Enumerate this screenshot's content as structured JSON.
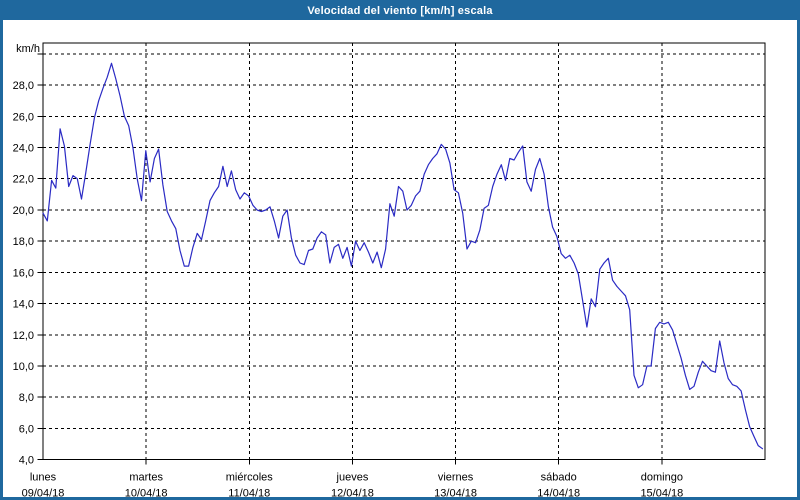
{
  "window": {
    "title": "Velocidad del viento [km/h] escala"
  },
  "colors": {
    "frame_blue": "#1f689e",
    "title_text": "#ffffff",
    "line_blue": "#2b2bc4",
    "grid_black": "#000000",
    "plot_background": "#ffffff"
  },
  "chart_data": {
    "type": "line",
    "title": "Velocidad del viento [km/h] escala",
    "ylabel": "km/h",
    "y_unit_label": "km/h",
    "ylim": [
      4,
      30.7
    ],
    "y_grid_step": 2,
    "y_grid_values": [
      30,
      28,
      26,
      24,
      22,
      20,
      18,
      16,
      14,
      12,
      10,
      8,
      6,
      4
    ],
    "y_tick_labels": [
      {
        "value": 28,
        "label": "28,0"
      },
      {
        "value": 26,
        "label": "26,0"
      },
      {
        "value": 24,
        "label": "24,0"
      },
      {
        "value": 22,
        "label": "22,0"
      },
      {
        "value": 20,
        "label": "20,0"
      },
      {
        "value": 18,
        "label": "18,0"
      },
      {
        "value": 16,
        "label": "16,0"
      },
      {
        "value": 14,
        "label": "14,0"
      },
      {
        "value": 12,
        "label": "12,0"
      },
      {
        "value": 10,
        "label": "10,0"
      },
      {
        "value": 8,
        "label": "8,0"
      },
      {
        "value": 6,
        "label": "6,0"
      },
      {
        "value": 4,
        "label": "4,0"
      }
    ],
    "x_days": [
      {
        "name": "lunes",
        "date": "09/04/18"
      },
      {
        "name": "martes",
        "date": "10/04/18"
      },
      {
        "name": "miércoles",
        "date": "11/04/18"
      },
      {
        "name": "jueves",
        "date": "12/04/18"
      },
      {
        "name": "viernes",
        "date": "13/04/18"
      },
      {
        "name": "sábado",
        "date": "14/04/18"
      },
      {
        "name": "domingo",
        "date": "15/04/18"
      }
    ],
    "legend_position": "none",
    "grid": true,
    "series": [
      {
        "name": "Velocidad del viento",
        "color": "#2b2bc4",
        "values": [
          19.8,
          19.3,
          21.9,
          21.4,
          25.2,
          24.1,
          21.5,
          22.2,
          22.0,
          20.7,
          22.4,
          24.2,
          25.9,
          27.0,
          27.8,
          28.5,
          29.4,
          28.4,
          27.3,
          26.0,
          25.4,
          24.0,
          22.0,
          20.6,
          23.8,
          21.8,
          23.3,
          23.9,
          21.6,
          19.9,
          19.3,
          18.8,
          17.4,
          16.4,
          16.4,
          17.6,
          18.5,
          18.1,
          19.3,
          20.6,
          21.1,
          21.5,
          22.8,
          21.5,
          22.5,
          21.3,
          20.7,
          21.1,
          20.9,
          20.3,
          20.0,
          19.9,
          20.0,
          20.2,
          19.3,
          18.2,
          19.6,
          20.0,
          18.2,
          17.1,
          16.6,
          16.5,
          17.4,
          17.5,
          18.2,
          18.6,
          18.4,
          16.6,
          17.6,
          17.8,
          16.9,
          17.6,
          16.4,
          18.0,
          17.4,
          17.9,
          17.3,
          16.6,
          17.3,
          16.3,
          17.5,
          20.4,
          19.6,
          21.5,
          21.2,
          20.0,
          20.3,
          20.9,
          21.2,
          22.3,
          22.9,
          23.3,
          23.6,
          24.2,
          23.9,
          23.0,
          21.3,
          21.1,
          19.8,
          17.5,
          18.0,
          17.9,
          18.7,
          20.1,
          20.3,
          21.5,
          22.3,
          22.9,
          21.9,
          23.3,
          23.2,
          23.7,
          24.1,
          21.8,
          21.2,
          22.6,
          23.3,
          22.3,
          20.2,
          18.9,
          18.3,
          17.2,
          16.9,
          17.1,
          16.6,
          15.9,
          14.2,
          12.5,
          14.3,
          13.8,
          16.2,
          16.6,
          16.9,
          15.5,
          15.1,
          14.8,
          14.5,
          13.6,
          9.4,
          8.6,
          8.8,
          10.0,
          10.0,
          12.4,
          12.8,
          12.7,
          12.8,
          12.3,
          11.4,
          10.5,
          9.4,
          8.5,
          8.7,
          9.6,
          10.3,
          10.0,
          9.7,
          9.6,
          11.6,
          10.2,
          9.2,
          8.8,
          8.7,
          8.4,
          7.2,
          6.1,
          5.5,
          4.9,
          4.7
        ]
      }
    ]
  }
}
